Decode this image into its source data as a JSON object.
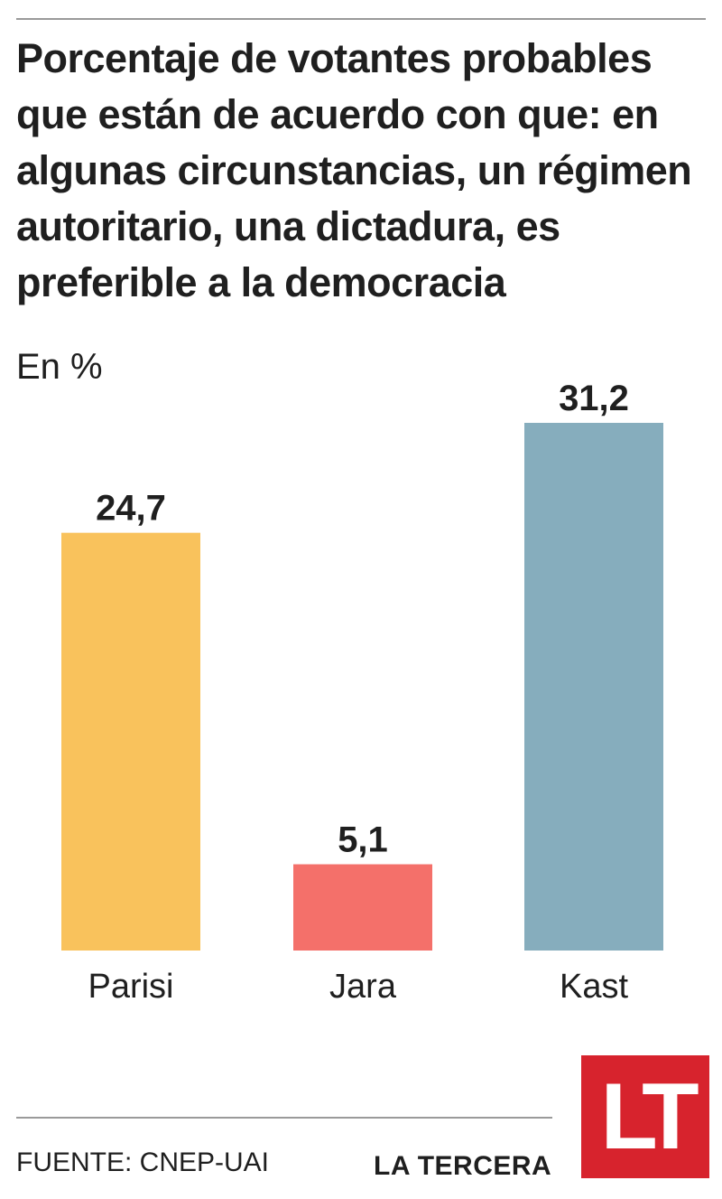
{
  "header": {
    "title": "Porcentaje de votantes probables que están de acuerdo con que: en algunas circunstancias, un régimen autoritario, una dictadura, es preferible a la democracia",
    "unit": "En %"
  },
  "chart_data": {
    "type": "bar",
    "title": "Porcentaje de votantes probables que están de acuerdo con que: en algunas circunstancias, un régimen autoritario, una dictadura, es preferible a la democracia",
    "ylabel": "En %",
    "categories": [
      "Parisi",
      "Jara",
      "Kast"
    ],
    "values": [
      24.7,
      5.1,
      31.2
    ],
    "value_labels": [
      "24,7",
      "5,1",
      "31,2"
    ],
    "colors": [
      "#f9c25c",
      "#f4706a",
      "#86adbd"
    ],
    "ylim": [
      0,
      31.2
    ],
    "grid": false,
    "legend": "none"
  },
  "footer": {
    "source": "FUENTE: CNEP-UAI",
    "brand": "LA TERCERA",
    "logo_text": "LT",
    "logo_color": "#d7232d"
  }
}
